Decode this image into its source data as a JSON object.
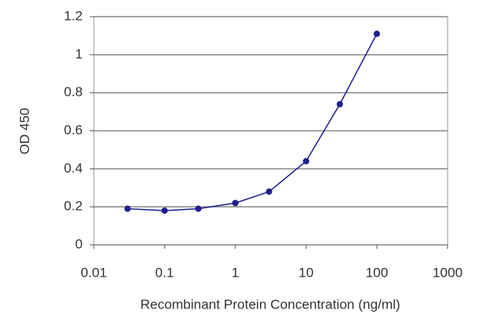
{
  "chart_data": {
    "type": "line",
    "x_label": "Recombinant Protein Concentration (ng/ml)",
    "y_label": "OD 450",
    "x": [
      0.03,
      0.1,
      0.3,
      1,
      3,
      10,
      30,
      100
    ],
    "series": [
      {
        "color": "#1f1f8f",
        "values": [
          0.19,
          0.18,
          0.19,
          0.22,
          0.28,
          0.44,
          0.74,
          1.11
        ]
      }
    ],
    "xscale": "log",
    "xlim": [
      0.01,
      1000
    ],
    "xticks": [
      0.01,
      0.1,
      1,
      10,
      100,
      1000
    ],
    "ylim": [
      0,
      1.2
    ],
    "yticks": [
      0,
      0.2,
      0.4,
      0.6,
      0.8,
      1,
      1.2
    ],
    "grid": true
  }
}
